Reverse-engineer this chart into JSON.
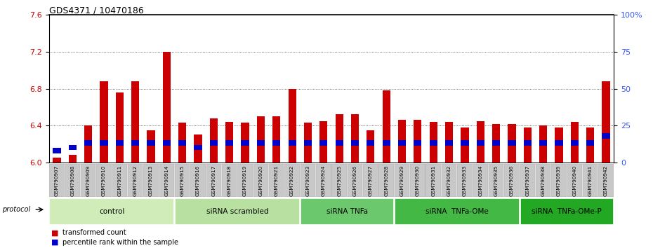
{
  "title": "GDS4371 / 10470186",
  "samples": [
    "GSM790907",
    "GSM790908",
    "GSM790909",
    "GSM790910",
    "GSM790911",
    "GSM790912",
    "GSM790913",
    "GSM790914",
    "GSM790915",
    "GSM790916",
    "GSM790917",
    "GSM790918",
    "GSM790919",
    "GSM790920",
    "GSM790921",
    "GSM790922",
    "GSM790923",
    "GSM790924",
    "GSM790925",
    "GSM790926",
    "GSM790927",
    "GSM790928",
    "GSM790929",
    "GSM790930",
    "GSM790931",
    "GSM790932",
    "GSM790933",
    "GSM790934",
    "GSM790935",
    "GSM790936",
    "GSM790937",
    "GSM790938",
    "GSM790939",
    "GSM790940",
    "GSM790941",
    "GSM790942"
  ],
  "red_values": [
    6.05,
    6.08,
    6.4,
    6.88,
    6.76,
    6.88,
    6.35,
    7.2,
    6.43,
    6.3,
    6.48,
    6.44,
    6.43,
    6.5,
    6.5,
    6.8,
    6.43,
    6.45,
    6.52,
    6.52,
    6.35,
    6.78,
    6.46,
    6.46,
    6.44,
    6.44,
    6.38,
    6.45,
    6.42,
    6.42,
    6.38,
    6.4,
    6.38,
    6.44,
    6.38,
    6.88
  ],
  "blue_percentile": [
    10,
    12,
    15,
    15,
    15,
    15,
    15,
    15,
    15,
    12,
    15,
    15,
    15,
    15,
    15,
    15,
    15,
    15,
    15,
    15,
    15,
    15,
    15,
    15,
    15,
    15,
    15,
    15,
    15,
    15,
    15,
    15,
    15,
    15,
    15,
    20
  ],
  "groups": [
    {
      "label": "control",
      "start": 0,
      "end": 8,
      "color": "#d0ecb8"
    },
    {
      "label": "siRNA scrambled",
      "start": 8,
      "end": 16,
      "color": "#b8e0a0"
    },
    {
      "label": "siRNA TNFa",
      "start": 16,
      "end": 22,
      "color": "#6cc86c"
    },
    {
      "label": "siRNA  TNFa-OMe",
      "start": 22,
      "end": 30,
      "color": "#44b844"
    },
    {
      "label": "siRNA  TNFa-OMe-P",
      "start": 30,
      "end": 36,
      "color": "#22a822"
    }
  ],
  "ylim_left": [
    6.0,
    7.6
  ],
  "ylim_right": [
    0,
    100
  ],
  "yticks_left": [
    6.0,
    6.4,
    6.8,
    7.2,
    7.6
  ],
  "yticks_right": [
    0,
    25,
    50,
    75,
    100
  ],
  "ytick_labels_right": [
    "0",
    "25",
    "50",
    "75",
    "100%"
  ],
  "bar_color": "#cc0000",
  "blue_color": "#0000cc",
  "baseline": 6.0,
  "blue_bar_height": 0.06
}
